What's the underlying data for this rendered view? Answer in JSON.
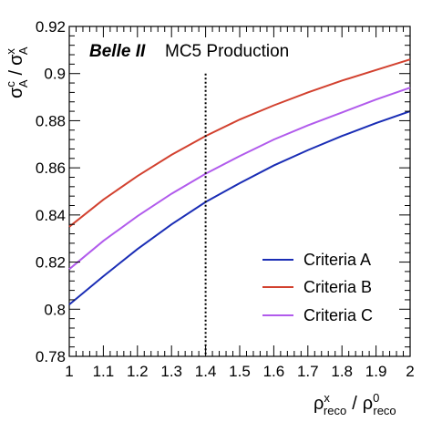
{
  "chart_data": {
    "type": "line",
    "title": "",
    "collaboration": "Belle II",
    "production": "MC5 Production",
    "xlabel_main": "ρ",
    "xlabel_num_sup": "x",
    "xlabel_num_sub": "reco",
    "xlabel_sep": "/",
    "xlabel_den_sup": "0",
    "xlabel_den_sub": "reco",
    "ylabel_main": "σ",
    "ylabel_num_sup": "c",
    "ylabel_num_sub": "A",
    "ylabel_sep": "/",
    "ylabel_den_sup": "x",
    "ylabel_den_sub": "A",
    "xlim": [
      1.0,
      2.0
    ],
    "ylim": [
      0.78,
      0.92
    ],
    "x_ticks": [
      1,
      1.1,
      1.2,
      1.3,
      1.4,
      1.5,
      1.6,
      1.7,
      1.8,
      1.9,
      2
    ],
    "x_tick_labels": [
      "1",
      "1.1",
      "1.2",
      "1.3",
      "1.4",
      "1.5",
      "1.6",
      "1.7",
      "1.8",
      "1.9",
      "2"
    ],
    "y_ticks": [
      0.78,
      0.8,
      0.82,
      0.84,
      0.86,
      0.88,
      0.9,
      0.92
    ],
    "y_tick_labels": [
      "0.78",
      "0.8",
      "0.82",
      "0.84",
      "0.86",
      "0.88",
      "0.9",
      "0.92"
    ],
    "vline_x": 1.4,
    "grid": false,
    "legend_position": "bottom-right",
    "x": [
      1.0,
      1.1,
      1.2,
      1.3,
      1.4,
      1.5,
      1.6,
      1.7,
      1.8,
      1.9,
      2.0
    ],
    "series": [
      {
        "name": "Criteria A",
        "color": "#1a2db5",
        "values": [
          0.802,
          0.814,
          0.8255,
          0.836,
          0.8455,
          0.8535,
          0.861,
          0.8675,
          0.8735,
          0.879,
          0.884
        ]
      },
      {
        "name": "Criteria B",
        "color": "#d2412f",
        "values": [
          0.835,
          0.8465,
          0.8565,
          0.8655,
          0.8735,
          0.8805,
          0.8865,
          0.892,
          0.897,
          0.9015,
          0.906
        ]
      },
      {
        "name": "Criteria C",
        "color": "#b15bec",
        "values": [
          0.817,
          0.829,
          0.8395,
          0.849,
          0.8575,
          0.865,
          0.872,
          0.878,
          0.8835,
          0.889,
          0.894
        ]
      }
    ]
  }
}
